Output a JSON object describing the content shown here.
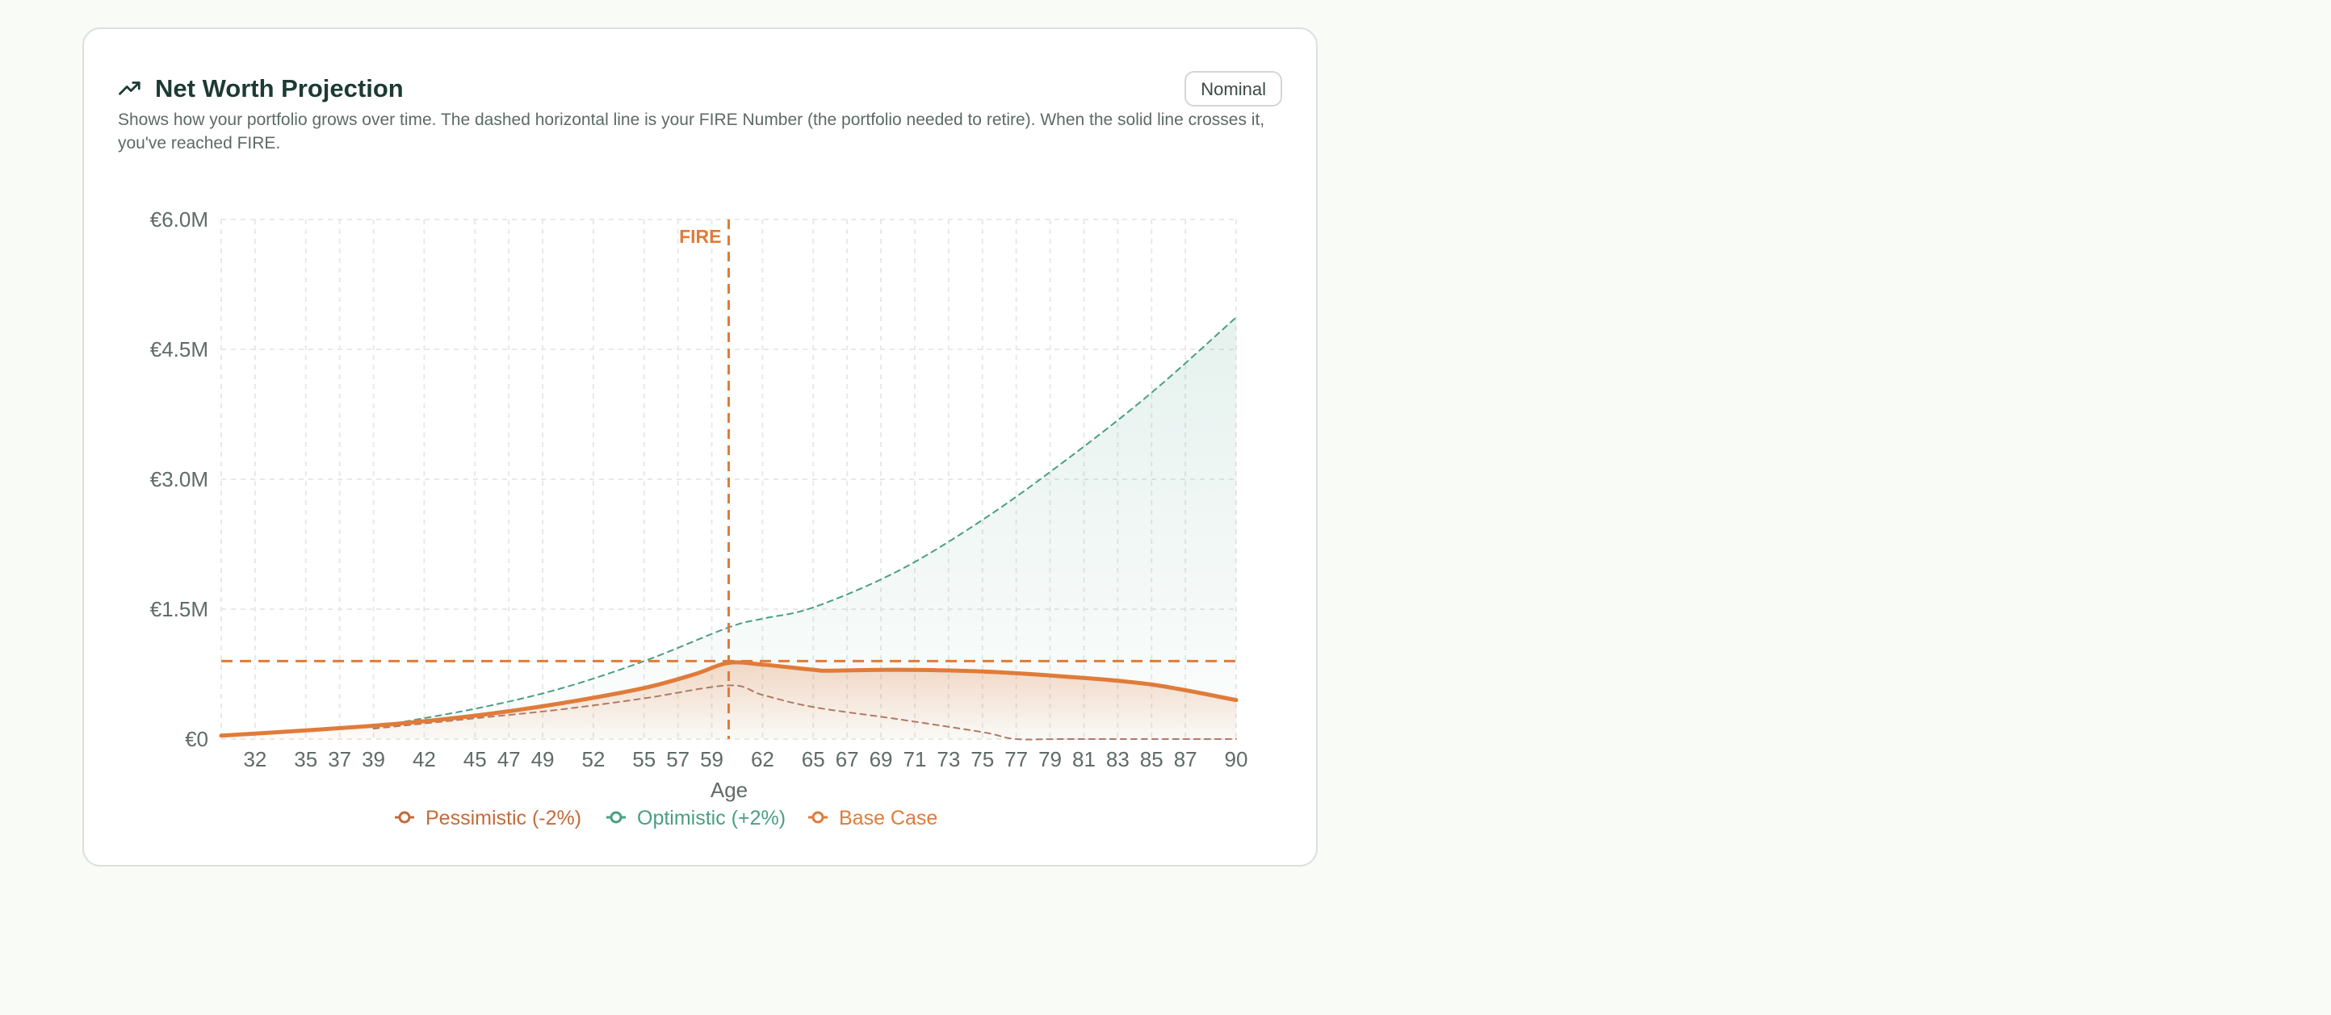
{
  "card": {
    "title": "Net Worth Projection",
    "badge": "Nominal",
    "description": "Shows how your portfolio grows over time. The dashed horizontal line is your FIRE Number (the portfolio needed to retire). When the solid line crosses it, you've reached FIRE.",
    "icon": "trending-up-icon"
  },
  "colors": {
    "base": "#e07b39",
    "pessimistic": "#c46a3a",
    "optimistic": "#4a9e84",
    "grid": "#e6e9e7",
    "title": "#1d3a34"
  },
  "chart_data": {
    "type": "line",
    "xlabel": "Age",
    "ylabel": "",
    "xlim": [
      30,
      90
    ],
    "ylim": [
      0,
      6000000
    ],
    "yticks": [
      {
        "value": 0,
        "label": "€0"
      },
      {
        "value": 1500000,
        "label": "€1.5M"
      },
      {
        "value": 3000000,
        "label": "€3.0M"
      },
      {
        "value": 4500000,
        "label": "€4.5M"
      },
      {
        "value": 6000000,
        "label": "€6.0M"
      }
    ],
    "xticks": [
      "32",
      "35",
      "37",
      "39",
      "42",
      "45",
      "47",
      "49",
      "52",
      "55",
      "57",
      "59",
      "62",
      "65",
      "67",
      "69",
      "71",
      "73",
      "75",
      "77",
      "79",
      "81",
      "83",
      "85",
      "87",
      "90"
    ],
    "fire_number": 900000,
    "fire_age": 60,
    "fire_label": "FIRE",
    "series": [
      {
        "name": "Pessimistic (-2%)",
        "key": "pessimistic",
        "style": "dashed",
        "x": [
          39,
          45,
          50,
          55,
          60,
          62,
          65,
          70,
          75,
          77,
          80,
          90
        ],
        "y": [
          120000,
          240000,
          340000,
          470000,
          620000,
          510000,
          370000,
          230000,
          80000,
          0,
          0,
          0
        ]
      },
      {
        "name": "Optimistic (+2%)",
        "key": "optimistic",
        "style": "dashed",
        "x": [
          39,
          45,
          50,
          55,
          60,
          62,
          65,
          70,
          75,
          80,
          85,
          90
        ],
        "y": [
          140000,
          350000,
          580000,
          900000,
          1290000,
          1390000,
          1520000,
          1940000,
          2530000,
          3230000,
          4000000,
          4870000
        ]
      },
      {
        "name": "Base Case",
        "key": "base",
        "style": "solid",
        "x": [
          30,
          35,
          40,
          45,
          50,
          55,
          58,
          60,
          62,
          65,
          66,
          70,
          75,
          80,
          85,
          90
        ],
        "y": [
          40000,
          100000,
          170000,
          270000,
          410000,
          590000,
          750000,
          880000,
          860000,
          800000,
          790000,
          800000,
          780000,
          720000,
          630000,
          450000
        ]
      }
    ]
  }
}
